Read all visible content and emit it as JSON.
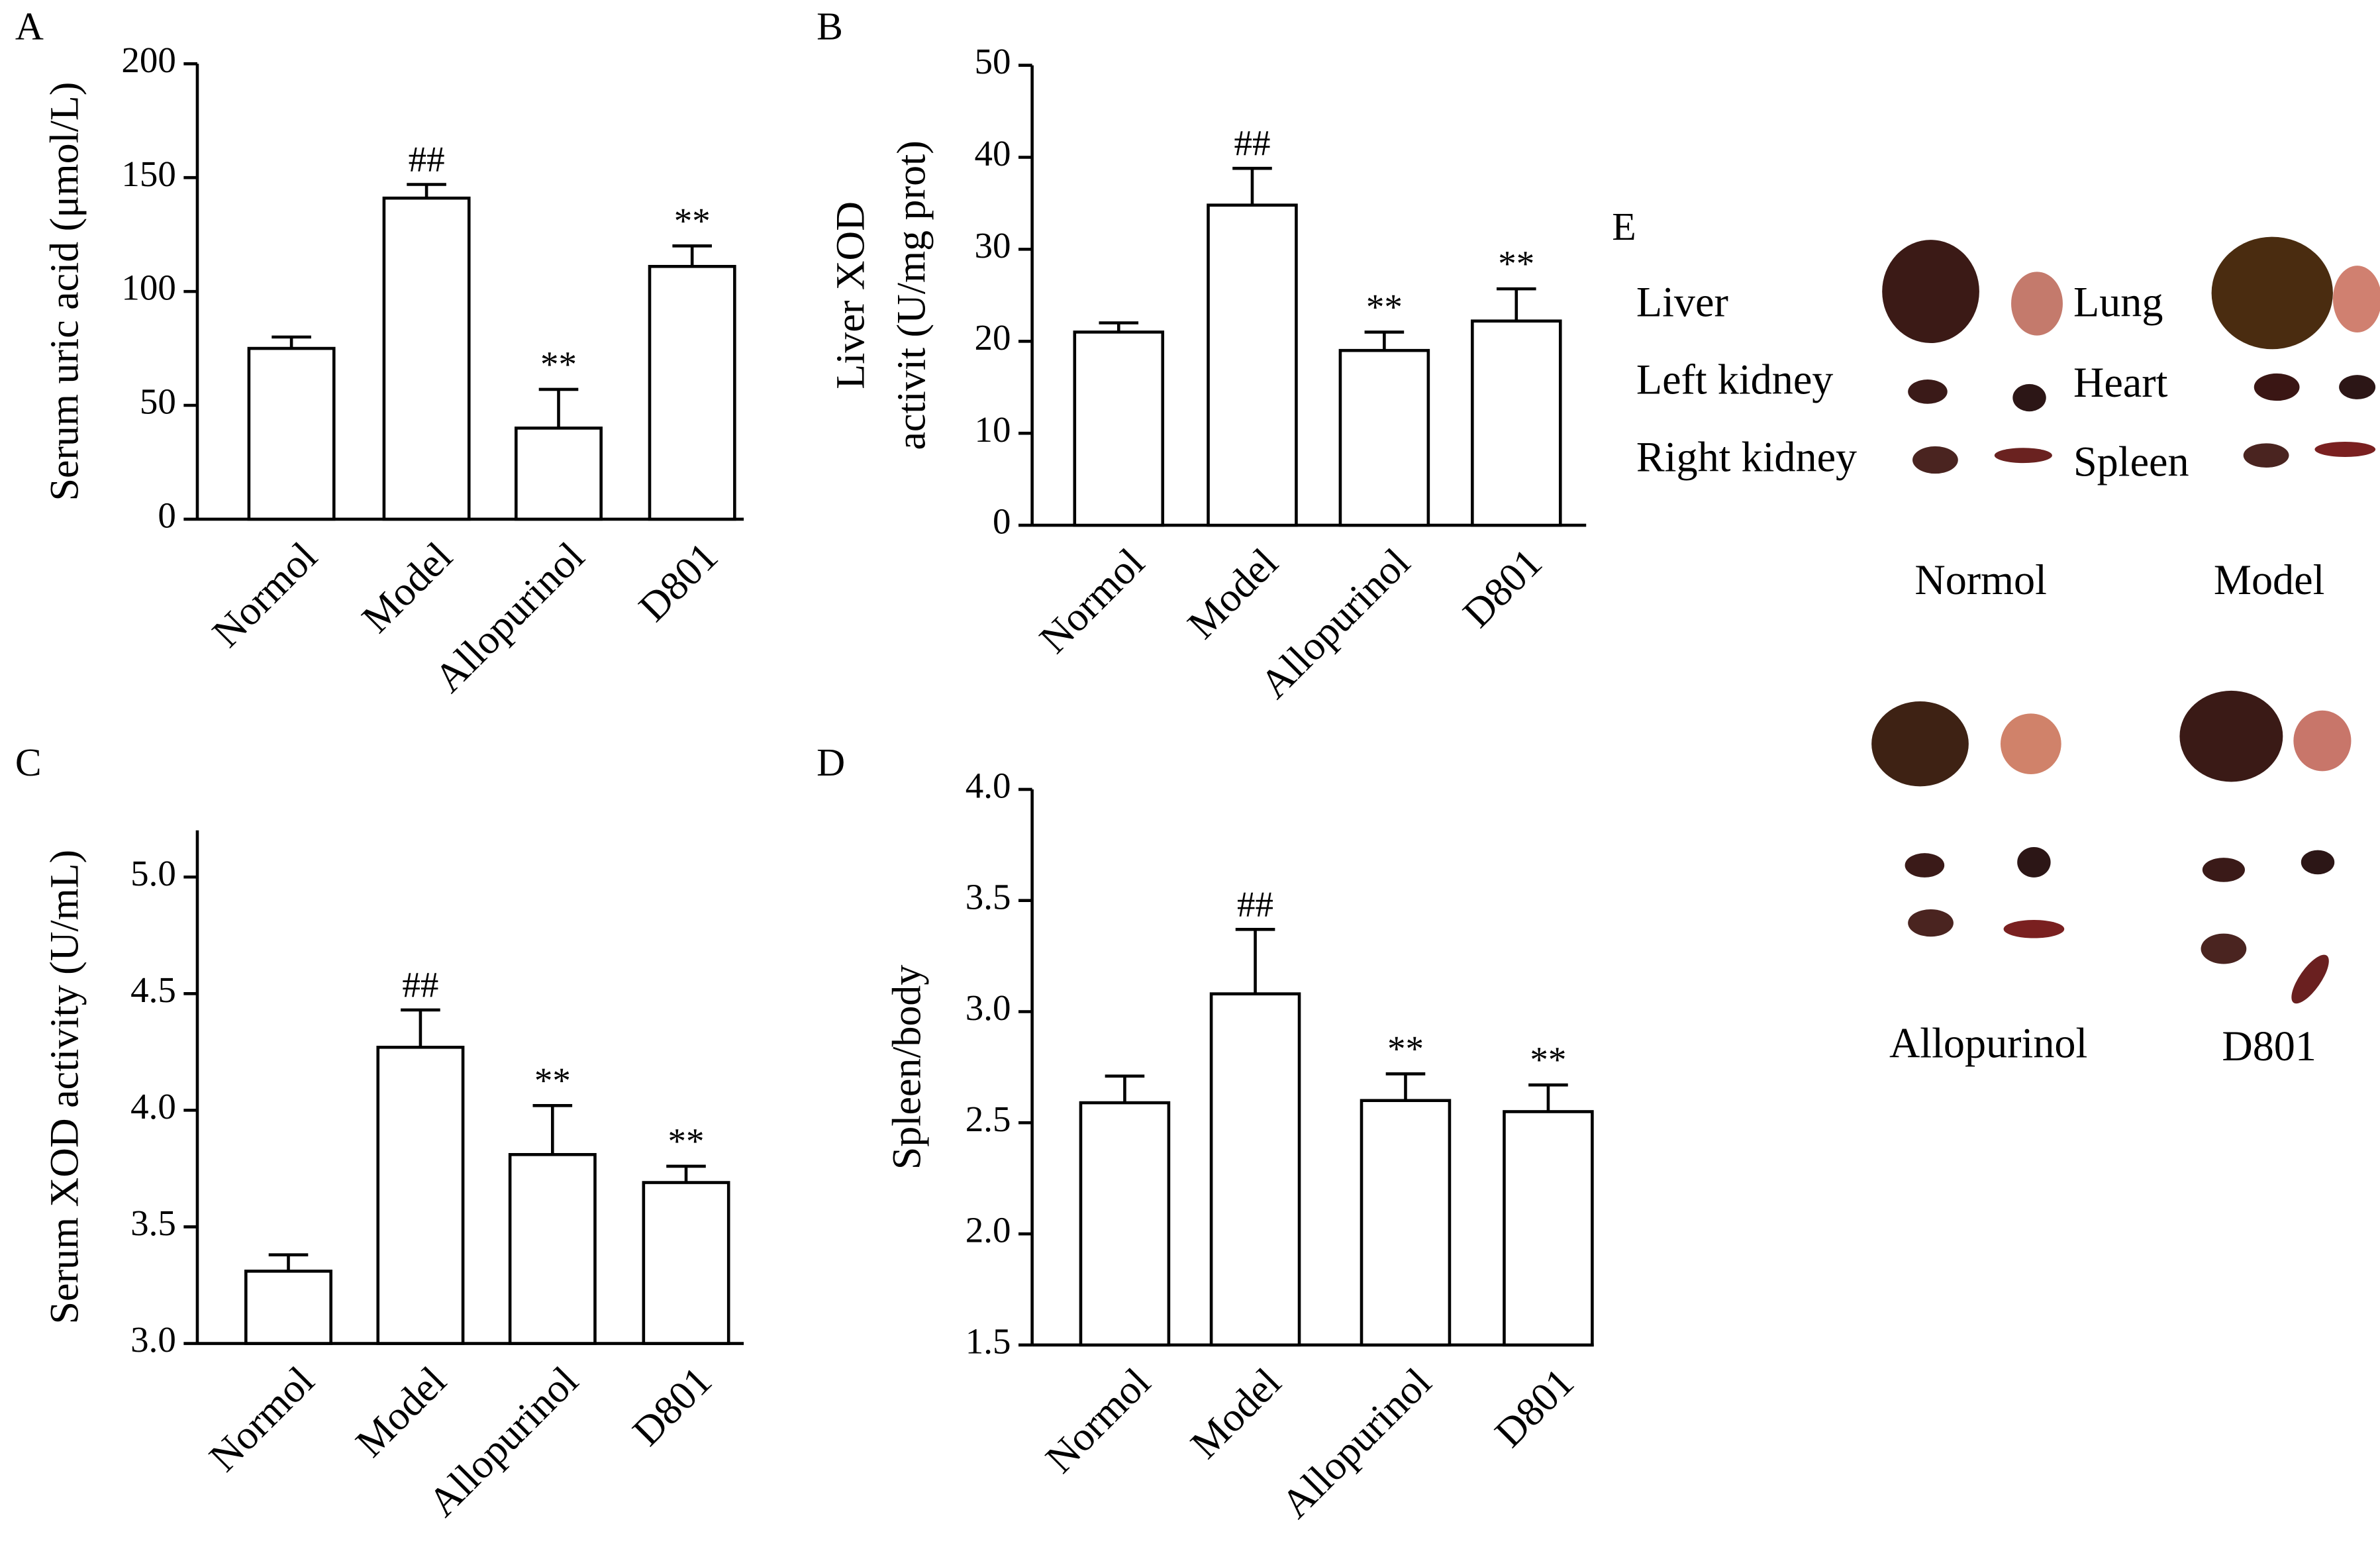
{
  "chart_data": [
    {
      "type": "bar",
      "panel": "A",
      "ylabel": "Serum uric acid (μmol/L)",
      "categories": [
        "Normol",
        "Model",
        "Allopurinol",
        "D801"
      ],
      "values": [
        75,
        141,
        40,
        111
      ],
      "errors": [
        5,
        6,
        17,
        9
      ],
      "annotations": [
        null,
        "##",
        "**",
        "**"
      ],
      "color": "#ffffff",
      "ylim": [
        0,
        200
      ],
      "yticks": [
        0,
        50,
        100,
        150,
        200
      ]
    },
    {
      "type": "bar",
      "panel": "B",
      "ylabel": [
        "Liver XOD",
        "activit (U/mg prot)"
      ],
      "categories": [
        "Normol",
        "Model",
        "Allopurinol",
        "D801"
      ],
      "values": [
        21,
        34.8,
        19,
        22.2
      ],
      "errors": [
        1,
        4,
        2,
        3.5
      ],
      "annotations": [
        null,
        "##",
        "**",
        "**"
      ],
      "color": "#ffffff",
      "ylim": [
        0,
        50
      ],
      "yticks": [
        0,
        10,
        20,
        30,
        40,
        50
      ]
    },
    {
      "type": "bar",
      "panel": "C",
      "ylabel": "Serum XOD activity (U/mL)",
      "categories": [
        "Normol",
        "Model",
        "Allopurinol",
        "D801"
      ],
      "values": [
        3.31,
        4.27,
        3.81,
        3.69
      ],
      "errors": [
        0.07,
        0.16,
        0.21,
        0.07
      ],
      "annotations": [
        null,
        "##",
        "**",
        "**"
      ],
      "color": "#ffffff",
      "ylim": [
        3.0,
        5.2
      ],
      "yticks": [
        {
          "value": 3,
          "label": "3.0"
        },
        {
          "value": 3.5,
          "label": "3.5"
        },
        {
          "value": 4,
          "label": "4.0"
        },
        {
          "value": 4.5,
          "label": "4.5"
        },
        {
          "value": 5,
          "label": "5.0"
        }
      ]
    },
    {
      "type": "bar",
      "panel": "D",
      "ylabel": "Spleen/body",
      "categories": [
        "Normol",
        "Model",
        "Allopurinol",
        "D801"
      ],
      "values": [
        2.59,
        3.08,
        2.6,
        2.55
      ],
      "errors": [
        0.12,
        0.29,
        0.12,
        0.12
      ],
      "annotations": [
        null,
        "##",
        "**",
        "**"
      ],
      "color": "#ffffff",
      "ylim": [
        1.5,
        4.0
      ],
      "yticks": [
        1.5,
        {
          "value": 2,
          "label": "2.0"
        },
        2.5,
        {
          "value": 3,
          "label": "3.0"
        },
        3.5,
        {
          "value": 4,
          "label": "4.0"
        }
      ]
    }
  ],
  "figure_e": {
    "panel": "E",
    "organs": [
      "Liver",
      "Lung",
      "Left kidney",
      "Heart",
      "Right kidney",
      "Spleen"
    ],
    "groups": [
      "Normol",
      "Model",
      "Allopurinol",
      "D801"
    ]
  }
}
